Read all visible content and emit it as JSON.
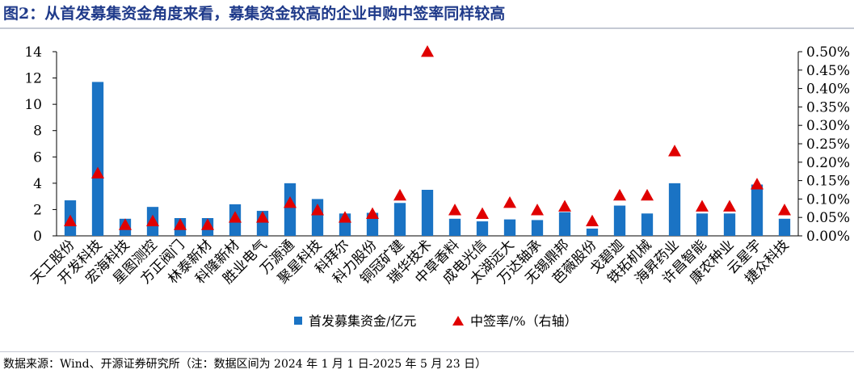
{
  "header": {
    "title": "图2：从首发募集资金角度来看，募集资金较高的企业申购中签率同样较高"
  },
  "footer": {
    "source": "数据来源：Wind、开源证券研究所（注：数据区间为 2024 年 1 月 1 日-2025 年 5 月 23 日）"
  },
  "chart_data": {
    "type": "bar",
    "categories": [
      "天工股份",
      "开发科技",
      "宏海科技",
      "星图测控",
      "方正阀门",
      "林泰新材",
      "科隆新材",
      "胜业电气",
      "万源通",
      "聚星科技",
      "科拜尔",
      "科力股份",
      "铜冠矿建",
      "瑞华技术",
      "中草香料",
      "成电光信",
      "太湖远大",
      "万达轴承",
      "无锡鼎邦",
      "芭薇股份",
      "戈碧迦",
      "铁拓机械",
      "海昇药业",
      "许昌智能",
      "康农种业",
      "云星宇",
      "捷众科技"
    ],
    "series": [
      {
        "name": "首发募集资金/亿元",
        "type": "bar",
        "axis": "left",
        "color": "#1a73c4",
        "values": [
          2.7,
          11.7,
          1.3,
          2.2,
          1.35,
          1.35,
          2.4,
          1.9,
          4.0,
          2.8,
          1.7,
          1.75,
          2.5,
          3.5,
          1.3,
          1.1,
          1.25,
          1.2,
          1.8,
          0.55,
          2.3,
          1.7,
          4.0,
          1.7,
          1.7,
          3.9,
          1.3
        ]
      },
      {
        "name": "中签率/%（右轴）",
        "type": "scatter",
        "axis": "right",
        "color": "#e00000",
        "values": [
          0.04,
          0.17,
          0.03,
          0.04,
          0.03,
          0.03,
          0.05,
          0.05,
          0.09,
          0.07,
          0.05,
          0.06,
          0.11,
          0.5,
          0.07,
          0.06,
          0.09,
          0.07,
          0.08,
          0.04,
          0.11,
          0.11,
          0.23,
          0.08,
          0.08,
          0.14,
          0.07
        ]
      }
    ],
    "y_left": {
      "min": 0,
      "max": 14,
      "ticks": [
        0,
        2,
        4,
        6,
        8,
        10,
        12,
        14
      ]
    },
    "y_right": {
      "min": 0,
      "max": 0.5,
      "ticks": [
        "0.00%",
        "0.05%",
        "0.10%",
        "0.15%",
        "0.20%",
        "0.25%",
        "0.30%",
        "0.35%",
        "0.40%",
        "0.45%",
        "0.50%"
      ]
    },
    "grid": false,
    "legend_position": "bottom"
  }
}
